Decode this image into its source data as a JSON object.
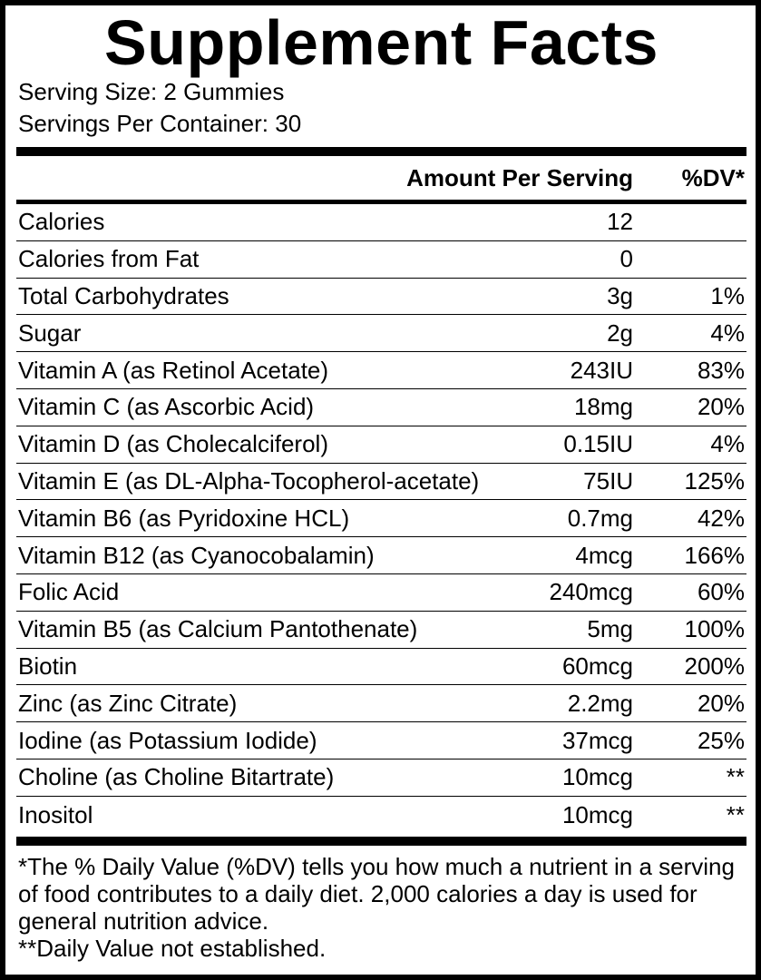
{
  "title": "Supplement Facts",
  "serving_size": "Serving Size: 2 Gummies",
  "servings_per_container": "Servings Per Container: 30",
  "header": {
    "amount_per_serving": "Amount Per Serving",
    "dv": "%DV*"
  },
  "rows": [
    {
      "name": "Calories",
      "amount": "12",
      "dv": ""
    },
    {
      "name": "Calories from Fat",
      "amount": "0",
      "dv": ""
    },
    {
      "name": "Total Carbohydrates",
      "amount": "3g",
      "dv": "1%"
    },
    {
      "name": "Sugar",
      "amount": "2g",
      "dv": "4%"
    },
    {
      "name": "Vitamin A (as Retinol Acetate)",
      "amount": "243IU",
      "dv": "83%"
    },
    {
      "name": "Vitamin C (as Ascorbic Acid)",
      "amount": "18mg",
      "dv": "20%"
    },
    {
      "name": "Vitamin D (as Cholecalciferol)",
      "amount": "0.15IU",
      "dv": "4%"
    },
    {
      "name": "Vitamin E (as DL-Alpha-Tocopherol-acetate)",
      "amount": "75IU",
      "dv": "125%"
    },
    {
      "name": "Vitamin B6 (as Pyridoxine HCL)",
      "amount": "0.7mg",
      "dv": "42%"
    },
    {
      "name": "Vitamin B12 (as Cyanocobalamin)",
      "amount": "4mcg",
      "dv": "166%"
    },
    {
      "name": "Folic Acid",
      "amount": "240mcg",
      "dv": "60%"
    },
    {
      "name": "Vitamin B5 (as Calcium Pantothenate)",
      "amount": "5mg",
      "dv": "100%"
    },
    {
      "name": "Biotin",
      "amount": "60mcg",
      "dv": "200%"
    },
    {
      "name": "Zinc (as Zinc Citrate)",
      "amount": "2.2mg",
      "dv": "20%"
    },
    {
      "name": "Iodine (as Potassium Iodide)",
      "amount": "37mcg",
      "dv": "25%"
    },
    {
      "name": "Choline (as Choline Bitartrate)",
      "amount": "10mcg",
      "dv": "**"
    },
    {
      "name": "Inositol",
      "amount": "10mcg",
      "dv": "**"
    }
  ],
  "footnote": {
    "daily_value_text": "*The % Daily Value (%DV) tells you how much a nutrient in a serving of food contributes to a daily diet. 2,000 calories a day is used for general nutrition advice.",
    "not_established": "**Daily Value not established."
  }
}
